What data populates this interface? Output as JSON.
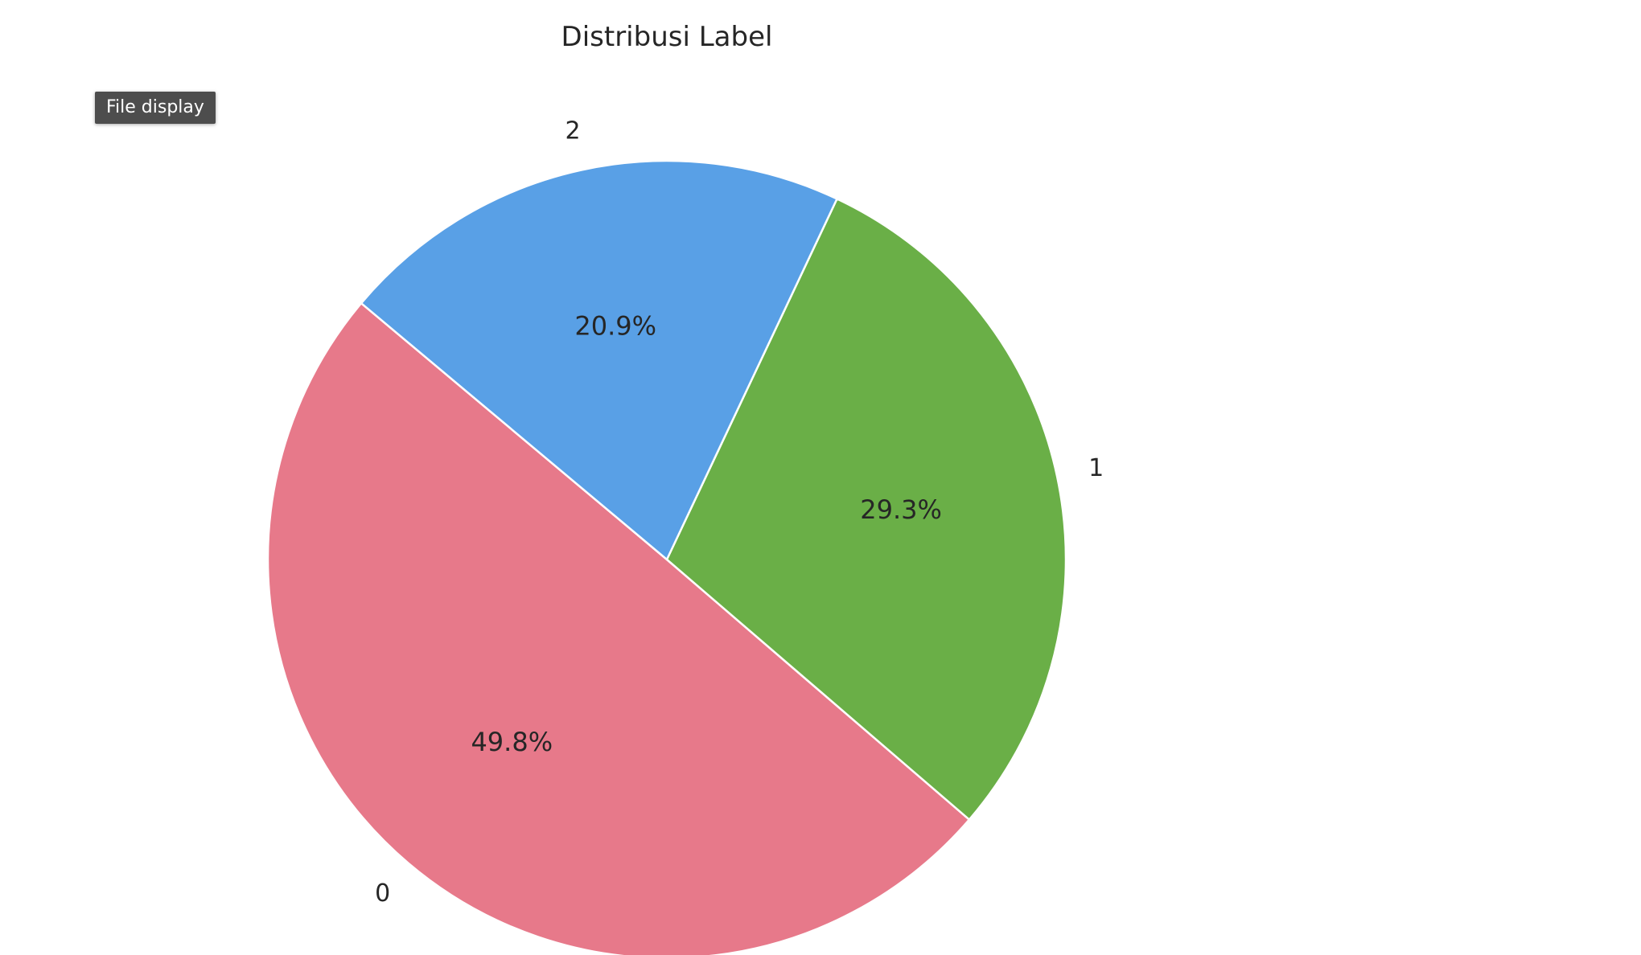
{
  "tooltip": {
    "text": "File display"
  },
  "chart_data": {
    "type": "pie",
    "title": "Distribusi Label",
    "categories": [
      "0",
      "1",
      "2"
    ],
    "values": [
      49.8,
      29.3,
      20.9
    ],
    "value_labels": [
      "49.8%",
      "29.3%",
      "20.9%"
    ],
    "colors": [
      "#e7798a",
      "#6aaf47",
      "#59a0e6"
    ],
    "start_angle_deg": 140,
    "direction": "counterclockwise",
    "legend": "none"
  }
}
